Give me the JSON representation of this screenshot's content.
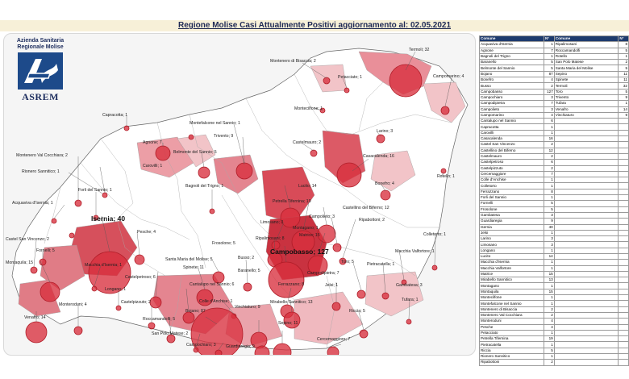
{
  "title": "Regione Molise Casi Attualmente Positivi aggiornamento al: 02.05.2021",
  "logo": {
    "line1": "Azienda Sanitaria",
    "line2": "Regionale Molise",
    "brand": "ASREM"
  },
  "table": {
    "headers": [
      "Comune",
      "N°",
      "Comune",
      "N°"
    ],
    "left": [
      [
        "Acquaviva d'Isernia",
        "1"
      ],
      [
        "Agnone",
        "7"
      ],
      [
        "Bagnoli del Trigno",
        "1"
      ],
      [
        "Baranello",
        "5"
      ],
      [
        "Belmonte del Sannio",
        "5"
      ],
      [
        "Bojano",
        "87"
      ],
      [
        "Bonefro",
        "4"
      ],
      [
        "Busso",
        "2"
      ],
      [
        "Campobasso",
        "127"
      ],
      [
        "Campochiaro",
        "3"
      ],
      [
        "Campodipietra",
        "7"
      ],
      [
        "Campolieto",
        "3"
      ],
      [
        "Campomarino",
        "4"
      ],
      [
        "Cantalupo nel Sannio",
        "6"
      ],
      [
        "Capracotta",
        "1"
      ],
      [
        "Carovilli",
        "1"
      ],
      [
        "Casacalenda",
        "16"
      ],
      [
        "Castel San Vincenzo",
        "2"
      ],
      [
        "Castellino del Biferno",
        "12"
      ],
      [
        "Castelmauro",
        "2"
      ],
      [
        "Castelpetroso",
        "6"
      ],
      [
        "Castelpizzuto",
        "2"
      ],
      [
        "Cercemaggiore",
        "7"
      ],
      [
        "Colle d'Anchise",
        "1"
      ],
      [
        "Colletorto",
        "1"
      ],
      [
        "Ferrazzano",
        "8"
      ],
      [
        "Forli del Sannio",
        "1"
      ],
      [
        "Fornelli",
        "5"
      ],
      [
        "Frosolone",
        "5"
      ],
      [
        "Gambatesa",
        "3"
      ],
      [
        "Guardiaregia",
        "9"
      ],
      [
        "Isernia",
        "40"
      ],
      [
        "Jelsi",
        "1"
      ],
      [
        "Larino",
        "3"
      ],
      [
        "Limosano",
        "3"
      ],
      [
        "Longano",
        "1"
      ],
      [
        "Lucito",
        "14"
      ],
      [
        "Macchia d'Isernia",
        "1"
      ],
      [
        "Macchia Valfortore",
        "1"
      ],
      [
        "Matrice",
        "15"
      ],
      [
        "Mirabello Sannitico",
        "13"
      ],
      [
        "Montagano",
        "1"
      ],
      [
        "Montaquila",
        "15"
      ],
      [
        "Montecilfone",
        "1"
      ],
      [
        "Montefalcone nel Sannio",
        "1"
      ],
      [
        "Montenero di Bisaccia",
        "2"
      ],
      [
        "Montenero Val Cocchiara",
        "2"
      ],
      [
        "Monteroduni",
        "4"
      ],
      [
        "Pesche",
        "4"
      ],
      [
        "Petacciato",
        "1"
      ],
      [
        "Petrella Tifernina",
        "19"
      ],
      [
        "Pietracatella",
        "1"
      ],
      [
        "Riccia",
        "5"
      ],
      [
        "Rionero Sannitico",
        "1"
      ],
      [
        "Ripabottoni",
        "2"
      ]
    ],
    "right": [
      [
        "Ripalimosani",
        "8"
      ],
      [
        "Roccamandolfi",
        "5"
      ],
      [
        "Rotello",
        "1"
      ],
      [
        "San Polo Matese",
        "2"
      ],
      [
        "Santa Maria del Molise",
        "5"
      ],
      [
        "Sepino",
        "11"
      ],
      [
        "Spinete",
        "11"
      ],
      [
        "Termoli",
        "32"
      ],
      [
        "Toro",
        "5"
      ],
      [
        "Trivento",
        "9"
      ],
      [
        "Tufara",
        "1"
      ],
      [
        "Venafro",
        "14"
      ],
      [
        "Vinchiaturo",
        "9"
      ]
    ]
  },
  "labels": {
    "termoli": "Termoli; 32",
    "campomarino": "Campomarino; 4",
    "montenero_bis": "Montenero di Bisaccia; 2",
    "petacciato": "Petacciato; 1",
    "montecilfone": "Montecilfone; 1",
    "larino": "Larino; 3",
    "casacalenda": "Casacalenda; 16",
    "rotello": "Rotello; 1",
    "bonefro": "Bonefro; 4",
    "capracotta": "Capracotta; 1",
    "montefalcone": "Montefalcone nel Sannio; 1",
    "trivento": "Trivento; 9",
    "castelmauro": "Castelmauro; 2",
    "agnone": "Agnone; 7",
    "belmonte": "Belmonte del Sannio; 5",
    "montenero_val": "Montenero Val Cocchiara; 2",
    "carovilli": "Carovilli; 1",
    "rionero": "Rionero Sannitico; 1",
    "forli": "Forli del Sannio; 1",
    "bagnoli": "Bagnoli del Trigno; 1",
    "lucito": "Lucito; 14",
    "acquaviva": "Acquaviva d'Isernia; 1",
    "petrella": "Petrella Tifernina; 19",
    "castellino": "Castellino del Biferno; 12",
    "isernia": "Isernia; 40",
    "castel_sv": "Castel San Vincenzo; 2",
    "pesche": "Pesche; 4",
    "limosano": "Limosano; 3",
    "campolieto": "Campolieto; 3",
    "ripabottoni": "Ripabottoni; 2",
    "montagano": "Montagano; 1",
    "matrice": "Matrice; 15",
    "colletorto": "Colletorto; 1",
    "ripalimosani": "Ripalimosani; 8",
    "fornelli": "Fornelli; 5",
    "frosolone": "Frosolone; 5",
    "montaquila": "Montaquila; 15",
    "macchia_is": "Macchia d'Isernia; 1",
    "macchia_val": "Macchia Valfortore; 1",
    "santa_maria": "Santa Maria del Molise; 5",
    "busso": "Busso; 2",
    "campobasso": "Campobasso; 127",
    "toro": "Toro; 5",
    "pietracatella": "Pietracatella; 1",
    "castelpetroso": "Castelpetroso; 6",
    "spinete": "Spinete; 11",
    "baranello": "Baranello; 5",
    "campodipietra": "Campodipietra; 7",
    "longano": "Longano; 1",
    "cantalupo": "Cantalupo nel Sannio; 6",
    "ferrazzano": "Ferrazzano; 8",
    "jelsi": "Jelsi; 1",
    "gambatesa": "Gambatesa; 3",
    "monteroduni": "Monteroduni; 4",
    "castelpizzuto": "Castelpizzuto; 2",
    "colle_anchise": "Colle d'Anchise; 1",
    "mirabello": "Mirabello Sannitico; 13",
    "tufara": "Tufara; 1",
    "riccia": "Riccia; 5",
    "venafro": "Venafro; 14",
    "roccamandolfi": "Roccamandolfi; 5",
    "bojano": "Bojano; 87",
    "vinchiaturo": "Vinchiaturo; 9",
    "sepino": "Sepino; 11",
    "san_polo": "San Polo Matese; 2",
    "campochiaro": "Campochiaro; 3",
    "guardiaregia": "Guardiaregia; 9",
    "cercemaggiore": "Cercemaggiore; 7"
  }
}
